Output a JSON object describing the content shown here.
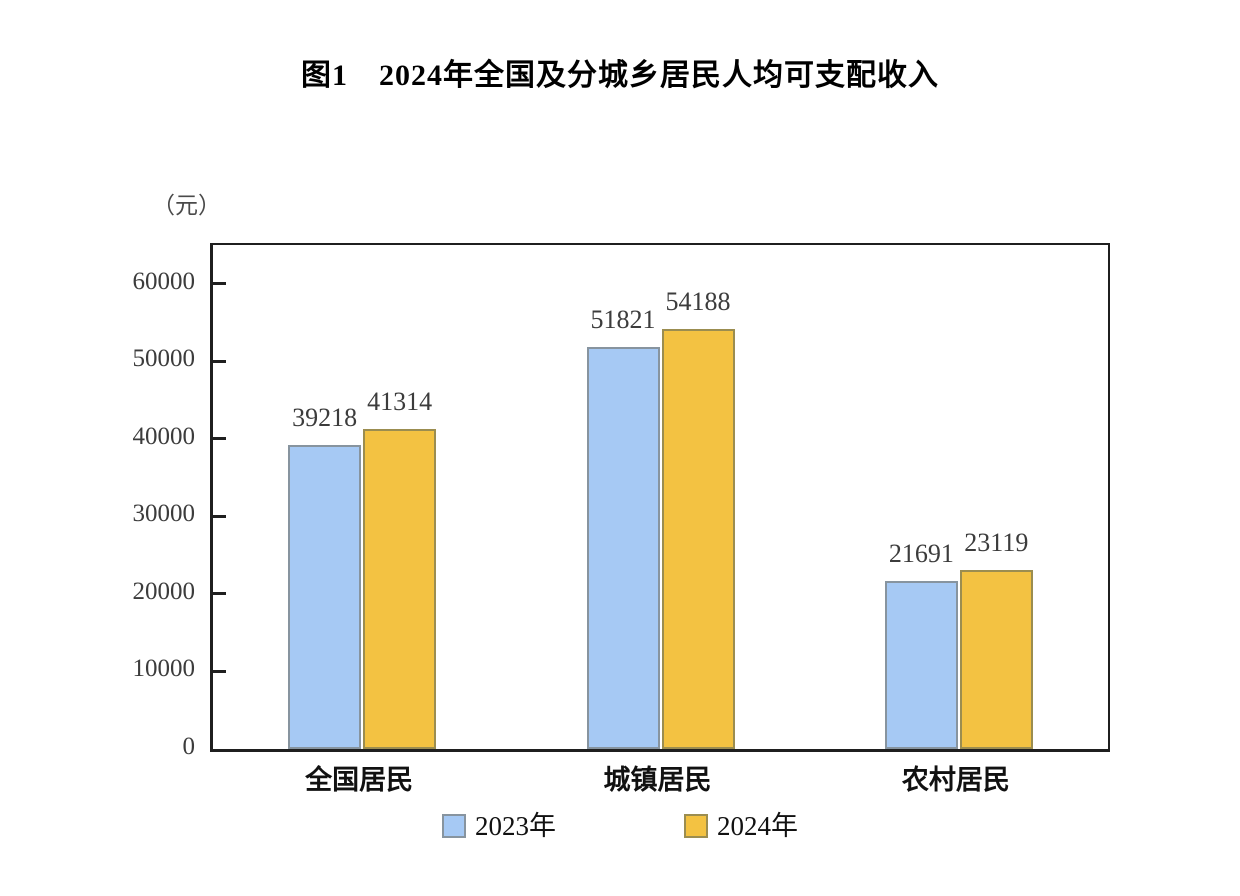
{
  "chart_data": {
    "type": "bar",
    "title": "图1　2024年全国及分城乡居民人均可支配收入",
    "unit_label": "（元）",
    "categories": [
      "全国居民",
      "城镇居民",
      "农村居民"
    ],
    "series": [
      {
        "name": "2023年",
        "color": "#a6c9f4",
        "border_color": "#87949f",
        "values": [
          39218,
          51821,
          21691
        ]
      },
      {
        "name": "2024年",
        "color": "#f3c242",
        "border_color": "#9b8d50",
        "values": [
          41314,
          54188,
          23119
        ]
      }
    ],
    "yticks": [
      0,
      10000,
      20000,
      30000,
      40000,
      50000,
      60000
    ],
    "ylim": [
      0,
      65000
    ],
    "xlabel": "",
    "ylabel": "（元）",
    "grid": false,
    "legend_position": "bottom",
    "value_labels_shown": true,
    "plot_border_color": "#1f1f1f"
  }
}
